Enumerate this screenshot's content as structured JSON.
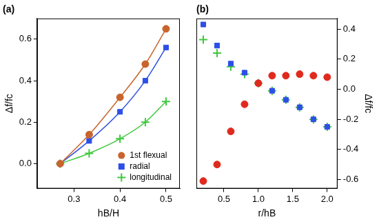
{
  "chart_data": [
    {
      "type": "scatter",
      "title": "(a)",
      "x_label": "hB/H",
      "y_label": "Δf/fc",
      "x": [
        0.27,
        0.333,
        0.4,
        0.455,
        0.5
      ],
      "xlim": [
        0.22,
        0.53
      ],
      "xticks": [
        0.3,
        0.4,
        0.5
      ],
      "ylim": [
        -0.12,
        0.7
      ],
      "yticks": [
        {
          "value": 0,
          "label": "0.0"
        },
        0.2,
        0.4,
        0.6
      ],
      "grid": false,
      "legend": "lower right",
      "series": [
        {
          "name": "1st flexual",
          "color": "#c8642c",
          "marker": "circle",
          "line_style": "solid",
          "values": [
            0,
            0.14,
            0.32,
            0.48,
            0.65
          ]
        },
        {
          "name": "radial",
          "color": "#2d4fe6",
          "marker": "square",
          "line_style": "solid",
          "values": [
            0,
            0.11,
            0.25,
            0.4,
            0.56
          ]
        },
        {
          "name": "longitudinal",
          "color": "#3cc83c",
          "marker": "plus",
          "line_style": "solid",
          "values": [
            0,
            0.05,
            0.12,
            0.2,
            0.3
          ]
        }
      ]
    },
    {
      "type": "scatter",
      "title": "(b)",
      "x_label": "r/hB",
      "y_label": "Δf/fc",
      "x": [
        0.2,
        0.4,
        0.6,
        0.8,
        1.0,
        1.2,
        1.4,
        1.6,
        1.8,
        2.0
      ],
      "xlim": [
        0.1,
        2.15
      ],
      "xticks": [
        0.5,
        {
          "value": 1,
          "label": "1.0"
        },
        1.5,
        {
          "value": 2,
          "label": "2.0"
        }
      ],
      "ylim": [
        -0.66,
        0.47
      ],
      "yticks": [
        -0.6,
        -0.4,
        -0.2,
        {
          "value": 0,
          "label": "0.0"
        },
        0.2,
        0.4
      ],
      "grid": false,
      "series": [
        {
          "color": "#e02a1e",
          "marker": "circle",
          "line_style": "none",
          "values": [
            -0.61,
            -0.5,
            -0.28,
            -0.1,
            0.04,
            0.09,
            0.09,
            0.1,
            0.09,
            0.08
          ]
        },
        {
          "color": "#2d4fe6",
          "marker": "square",
          "line_style": "none",
          "values": [
            0.43,
            0.29,
            0.17,
            0.11,
            0.04,
            -0.01,
            -0.07,
            -0.12,
            -0.2,
            -0.25
          ]
        },
        {
          "color": "#3cc83c",
          "marker": "plus",
          "line_style": "none",
          "values": [
            0.33,
            0.24,
            0.15,
            0.1,
            0.04,
            -0.01,
            -0.07,
            -0.12,
            -0.2,
            -0.25
          ]
        }
      ]
    }
  ]
}
